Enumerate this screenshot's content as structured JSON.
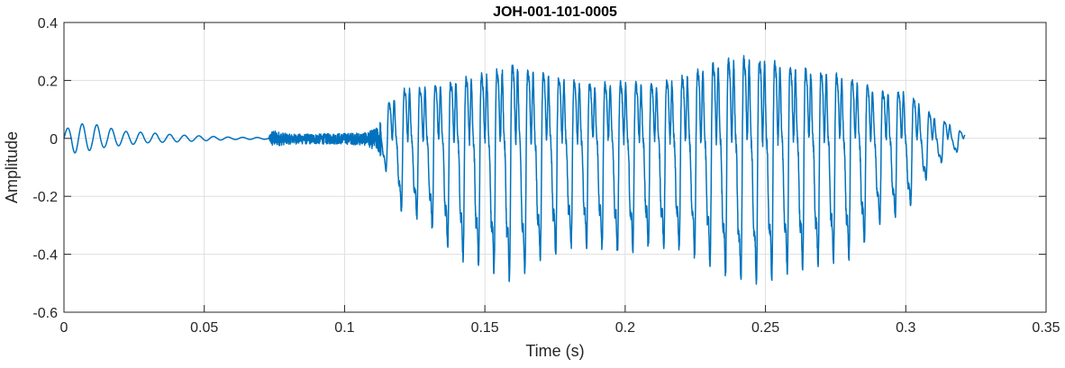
{
  "chart_data": {
    "type": "line",
    "title": "JOH-001-101-0005",
    "xlabel": "Time (s)",
    "ylabel": "Amplitude",
    "xlim": [
      0,
      0.35
    ],
    "ylim": [
      -0.6,
      0.4
    ],
    "xticks": [
      0,
      0.05,
      0.1,
      0.15,
      0.2,
      0.25,
      0.3,
      0.35
    ],
    "xtick_labels": [
      "0",
      "0.05",
      "0.1",
      "0.15",
      "0.2",
      "0.25",
      "0.3",
      "0.35"
    ],
    "yticks": [
      -0.6,
      -0.4,
      -0.2,
      0,
      0.2,
      0.4
    ],
    "ytick_labels": [
      "-0.6",
      "-0.4",
      "-0.2",
      "0",
      "0.2",
      "0.4"
    ],
    "grid": true,
    "line_color": "#0072BD",
    "series": [
      {
        "duration": 0.321,
        "envelope": {
          "t": [
            0,
            0.005,
            0.01,
            0.015,
            0.02,
            0.03,
            0.04,
            0.05,
            0.06,
            0.073,
            0.074,
            0.08,
            0.09,
            0.1,
            0.108,
            0.112,
            0.115,
            0.12,
            0.13,
            0.14,
            0.15,
            0.16,
            0.17,
            0.18,
            0.19,
            0.2,
            0.21,
            0.22,
            0.23,
            0.24,
            0.25,
            0.26,
            0.27,
            0.28,
            0.29,
            0.3,
            0.31,
            0.315,
            0.321
          ],
          "max": [
            0.03,
            0.05,
            0.05,
            0.04,
            0.025,
            0.02,
            0.012,
            0.008,
            0.004,
            0.003,
            0.03,
            0.015,
            0.015,
            0.018,
            0.02,
            0.04,
            0.15,
            0.23,
            0.24,
            0.27,
            0.3,
            0.34,
            0.3,
            0.27,
            0.25,
            0.26,
            0.25,
            0.28,
            0.34,
            0.37,
            0.37,
            0.33,
            0.31,
            0.28,
            0.22,
            0.22,
            0.1,
            0.07,
            0.02
          ],
          "min": [
            -0.05,
            -0.05,
            -0.04,
            -0.03,
            -0.025,
            -0.015,
            -0.012,
            -0.008,
            -0.004,
            -0.003,
            -0.03,
            -0.02,
            -0.02,
            -0.02,
            -0.025,
            -0.05,
            -0.12,
            -0.25,
            -0.3,
            -0.42,
            -0.45,
            -0.5,
            -0.42,
            -0.38,
            -0.38,
            -0.4,
            -0.38,
            -0.39,
            -0.44,
            -0.51,
            -0.5,
            -0.46,
            -0.44,
            -0.42,
            -0.3,
            -0.26,
            -0.1,
            -0.07,
            -0.03
          ]
        },
        "pitch_period_s": 0.0055
      }
    ]
  }
}
